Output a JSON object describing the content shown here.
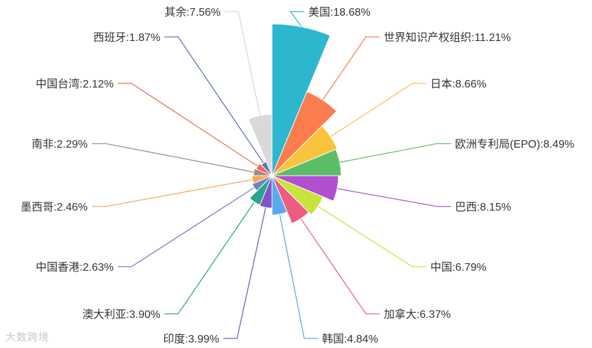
{
  "chart_data": {
    "type": "pie",
    "subtype": "rose",
    "categories": [
      "美国",
      "世界知识产权组织",
      "日本",
      "欧洲专利局(EPO)",
      "巴西",
      "中国",
      "加拿大",
      "韩国",
      "印度",
      "澳大利亚",
      "中国香港",
      "墨西哥",
      "南非",
      "中国台湾",
      "西班牙",
      "其余"
    ],
    "values": [
      18.68,
      11.21,
      8.66,
      8.49,
      8.15,
      6.79,
      6.37,
      4.84,
      3.99,
      3.9,
      2.63,
      2.46,
      2.29,
      2.12,
      1.87,
      7.56
    ],
    "labels": [
      "美国:18.68%",
      "世界知识产权组织:11.21%",
      "日本:8.66%",
      "欧洲专利局(EPO):8.49%",
      "巴西:8.15%",
      "中国:6.79%",
      "加拿大:6.37%",
      "韩国:4.84%",
      "印度:3.99%",
      "澳大利亚:3.90%",
      "中国香港:2.63%",
      "墨西哥:2.46%",
      "南非:2.29%",
      "中国台湾:2.12%",
      "西班牙:1.87%",
      "其余:7.56%"
    ],
    "colors": [
      "#2db7cf",
      "#fb7d4d",
      "#fbc33c",
      "#5cbd69",
      "#b04fd0",
      "#c8e23e",
      "#ec5c83",
      "#5aa9ef",
      "#8254c6",
      "#2aa58d",
      "#6f81c6",
      "#f9a85a",
      "#a68b80",
      "#ee6a5a",
      "#5b73b4",
      "#d9d9d9"
    ]
  },
  "watermark": "大数跨境"
}
